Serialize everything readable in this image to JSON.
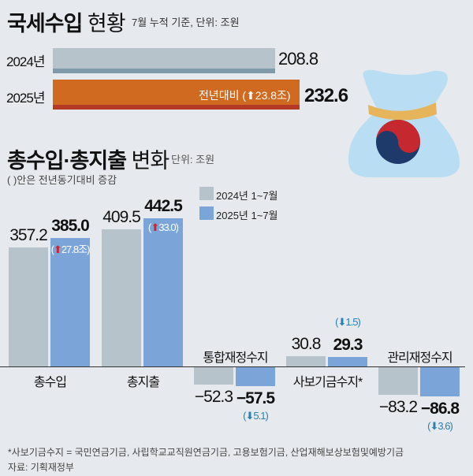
{
  "section1": {
    "title_bold": "국세수입",
    "title_light": "현황",
    "subtitle": "7월 누적 기준, 단위: 조원",
    "rows": [
      {
        "label": "2024년",
        "value": 208.8,
        "value_text": "208.8",
        "color": "#b6c3cb",
        "strip": "#7f9aa8"
      },
      {
        "label": "2025년",
        "value": 232.6,
        "value_text": "232.6",
        "color": "#d06a20",
        "strip": "#b53a26",
        "note": "전년대비 (⬆23.8조)"
      }
    ]
  },
  "section2": {
    "title_bold": "총수입·총지출",
    "title_light": "변화",
    "subtitle": "단위: 조원",
    "note": "( )안은 전년동기대비 증감"
  },
  "chart_data": {
    "type": "bar",
    "categories": [
      "총수입",
      "총지출",
      "통합재정수지",
      "사보기금수지*",
      "관리재정수지"
    ],
    "series": [
      {
        "name": "2024년 1~7월",
        "values": [
          357.2,
          409.5,
          -52.3,
          30.8,
          -83.2
        ],
        "color": "#b6c3cb"
      },
      {
        "name": "2025년 1~7월",
        "values": [
          385.0,
          442.5,
          -57.5,
          29.3,
          -86.8
        ],
        "color": "#7ba5d8"
      }
    ],
    "changes": [
      "⬆27.8조",
      "⬆33.0",
      "⬇5.1",
      "⬇1.5",
      "⬇3.6"
    ],
    "change_directions": [
      "up",
      "up",
      "down",
      "down",
      "down"
    ],
    "legend_placement": "top-center",
    "grid": false
  },
  "footnote": "*사보기금수지 = 국민연금기금, 사립학교교직원연금기금, 고용보험기금, 산업재해보상보험및예방기금",
  "source": "자료:  기획재정부"
}
